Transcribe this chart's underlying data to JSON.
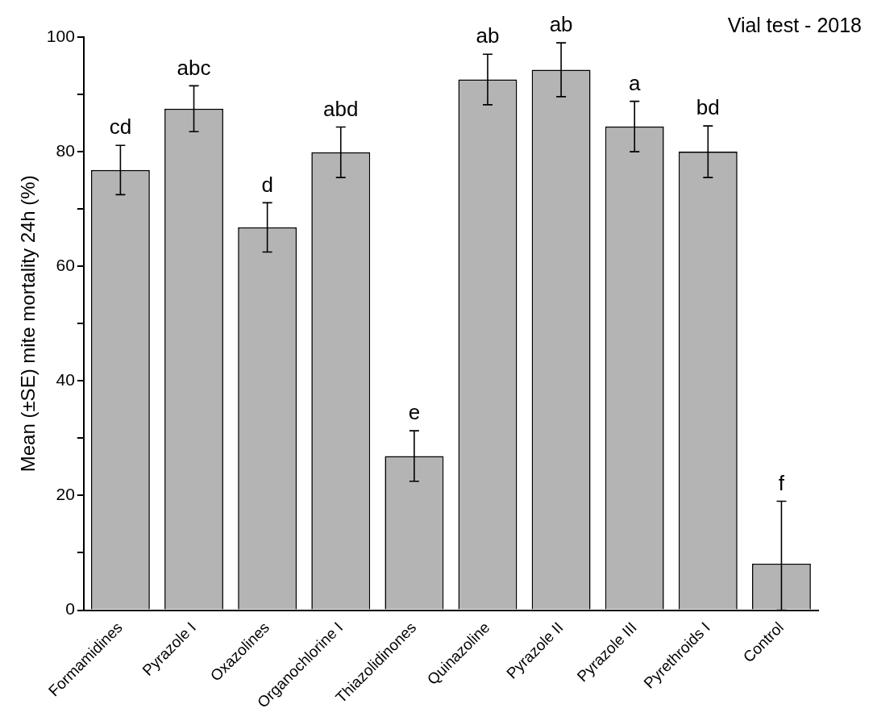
{
  "chart_data": {
    "type": "bar",
    "title": "Vial test - 2018",
    "ylabel": "Mean (±SE) mite mortality 24h (%)",
    "categories": [
      "Formamidines",
      "Pyrazole I",
      "Oxazolines",
      "Organochlorine I",
      "Thiazolidinones",
      "Quinazoline",
      "Pyrazole II",
      "Pyrazole III",
      "Pyrethroids I",
      "Control"
    ],
    "values": [
      76.8,
      87.5,
      66.8,
      79.9,
      26.9,
      92.6,
      94.3,
      84.4,
      80.0,
      8.1
    ],
    "errors": [
      4.3,
      4.0,
      4.3,
      4.4,
      4.4,
      4.4,
      4.7,
      4.4,
      4.5,
      [
        0,
        19
      ]
    ],
    "color": "#b4b4b4",
    "ylim": [
      0,
      100
    ],
    "yticks": [
      0,
      {
        "value": 10,
        "label": null
      },
      20,
      {
        "value": 30,
        "label": null
      },
      40,
      {
        "value": 50,
        "label": null
      },
      60,
      {
        "value": 70,
        "label": null
      },
      80,
      {
        "value": 90,
        "label": null
      },
      100
    ],
    "grid": false,
    "legend": false,
    "annotations": [
      {
        "text": "cd",
        "x": "Formamidines",
        "y": 81.1
      },
      {
        "text": "abc",
        "x": "Pyrazole I",
        "y": 91.5
      },
      {
        "text": "d",
        "x": "Oxazolines",
        "y": 71.1
      },
      {
        "text": "abd",
        "x": "Organochlorine I",
        "y": 84.3
      },
      {
        "text": "e",
        "x": "Thiazolidinones",
        "y": 31.3
      },
      {
        "text": "ab",
        "x": "Quinazoline",
        "y": 97.0
      },
      {
        "text": "ab",
        "x": "Pyrazole II",
        "y": 99.0
      },
      {
        "text": "a",
        "x": "Pyrazole III",
        "y": 88.8
      },
      {
        "text": "bd",
        "x": "Pyrethroids I",
        "y": 84.5
      },
      {
        "text": "f",
        "x": "Control",
        "y": 19.0
      }
    ]
  }
}
